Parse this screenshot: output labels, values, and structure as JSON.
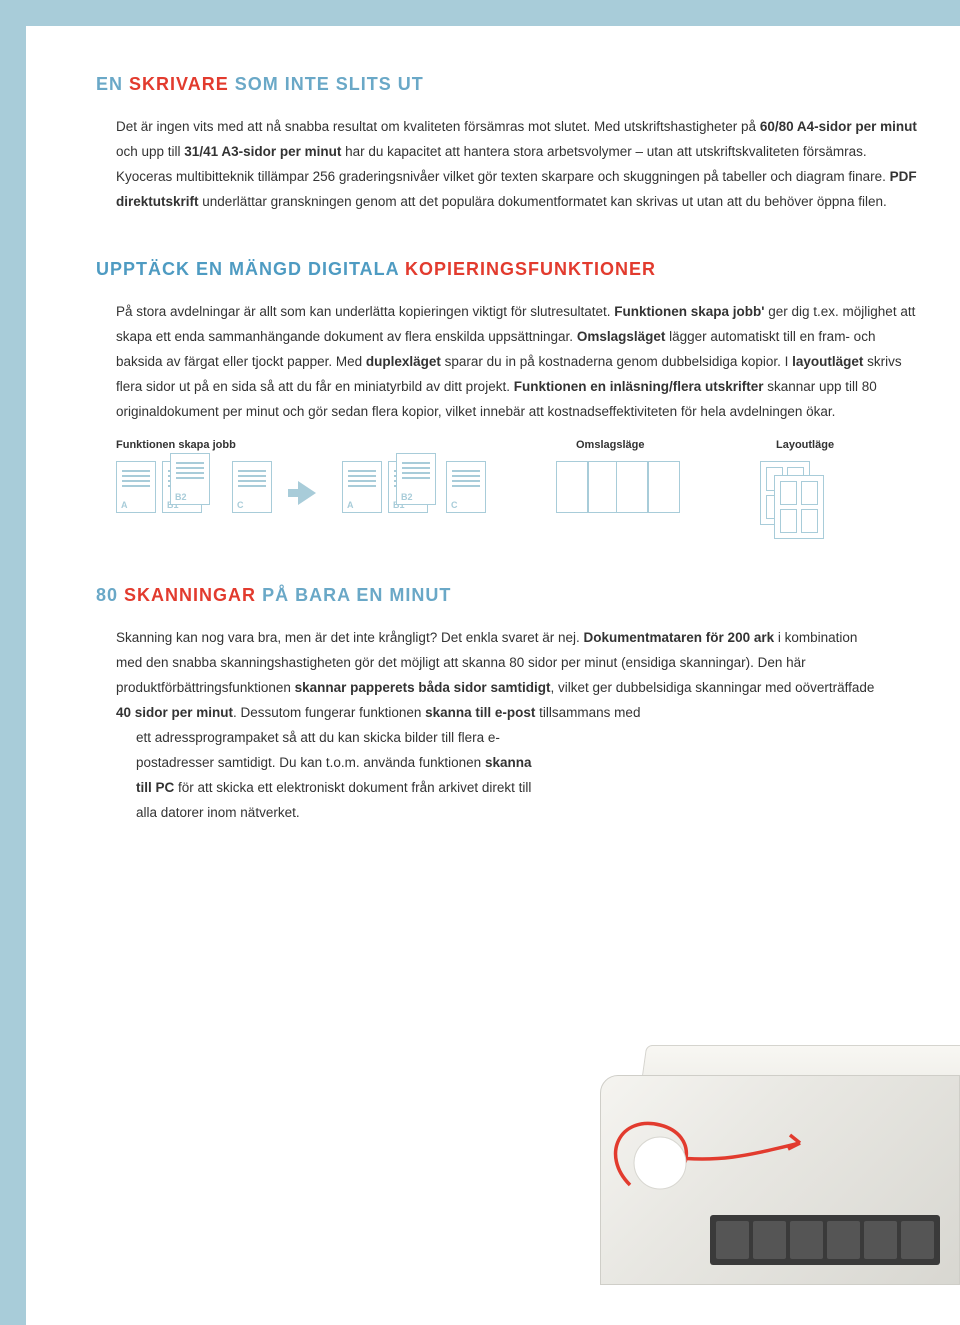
{
  "colors": {
    "border": "#a8ccd9",
    "red": "#e23b2e",
    "blue_light": "#6aa8c7",
    "blue_head": "#4e9bc2",
    "text": "#333333",
    "icon_stroke": "#a8ccd9",
    "printer_light": "#f5f4f0",
    "printer_dark": "#d8d7d1",
    "panel": "#3a3a3a",
    "swirl": "#e23b2e"
  },
  "section1": {
    "heading_parts": [
      "EN",
      "SKRIVARE",
      "SOM INTE SLITS UT"
    ],
    "body": "Det är ingen vits med att nå snabba resultat om kvaliteten försämras mot slutet. Med utskriftshastigheter på 60/80 A4-sidor per minut och upp till 31/41 A3-sidor per minut har du kapacitet att hantera stora arbetsvolymer – utan att utskriftskvaliteten försämras. Kyoceras multibitteknik tillämpar 256 graderingsnivåer vilket gör texten skarpare och skuggningen på tabeller och diagram finare. PDF direktutskrift underlättar granskningen genom att det populära dokumentformatet kan skrivas ut utan att du behöver öppna filen.",
    "bold_spans": [
      "60/80 A4-sidor per minut",
      "31/41 A3-sidor per minut",
      "PDF direktutskrift"
    ]
  },
  "section2": {
    "heading_parts": [
      "UPPTÄCK EN MÄNGD DIGITALA",
      "KOPIERINGSFUNKTIONER"
    ],
    "body": "På stora avdelningar är allt som kan underlätta kopieringen viktigt för slutresultatet. Funktionen skapa jobb' ger dig t.ex. möjlighet att skapa ett enda sammanhängande dokument av flera enskilda uppsättningar. Omslagsläget lägger automatiskt till en fram- och baksida av färgat eller tjockt papper. Med duplexläget sparar du in på kostnaderna genom dubbelsidiga kopior. I layoutläget skrivs flera sidor ut på en sida så att du får en miniatyrbild av ditt projekt. Funktionen en inläsning/flera utskrifter skannar upp till 80 originaldokument per minut och gör sedan flera kopior, vilket innebär att kostnadseffektiviteten för hela avdelningen ökar.",
    "bold_spans": [
      "Funktionen skapa jobb'",
      "Omslagsläget",
      "duplexläget",
      "layoutläget",
      "Funktionen en inläsning/flera utskrifter"
    ]
  },
  "diagrams": {
    "labels": [
      "Funktionen skapa jobb",
      "Omslagsläge",
      "Layoutläge"
    ],
    "page_tags": [
      "A",
      "B1",
      "B2",
      "C",
      "A",
      "B1",
      "B2",
      "C"
    ]
  },
  "section3": {
    "heading_parts": [
      "80",
      "SKANNINGAR",
      "PÅ BARA EN MINUT"
    ],
    "body": "Skanning kan nog vara bra, men är det inte krångligt? Det enkla svaret är nej. Dokumentmataren för 200 ark i kombination med den snabba skanningshastigheten gör det möjligt att skanna 80 sidor per minut (ensidiga skanningar). Den här produktförbättringsfunktionen skannar papperets båda sidor samtidigt, vilket ger dubbelsidiga skanningar med oöverträffade 40 sidor per minut. Dessutom fungerar funktionen skanna till e-post tillsammans med ett adressprogrampaket så att du kan skicka bilder till flera e-postadresser samtidigt. Du kan t.o.m. använda funktionen skanna till PC för att skicka ett elektroniskt dokument från arkivet direkt till alla datorer inom nätverket.",
    "bold_spans": [
      "Dokumentmataren för 200 ark",
      "skannar papperets båda sidor samtidigt",
      "40 sidor per minut",
      "skanna till e-post",
      "skanna till PC"
    ]
  }
}
